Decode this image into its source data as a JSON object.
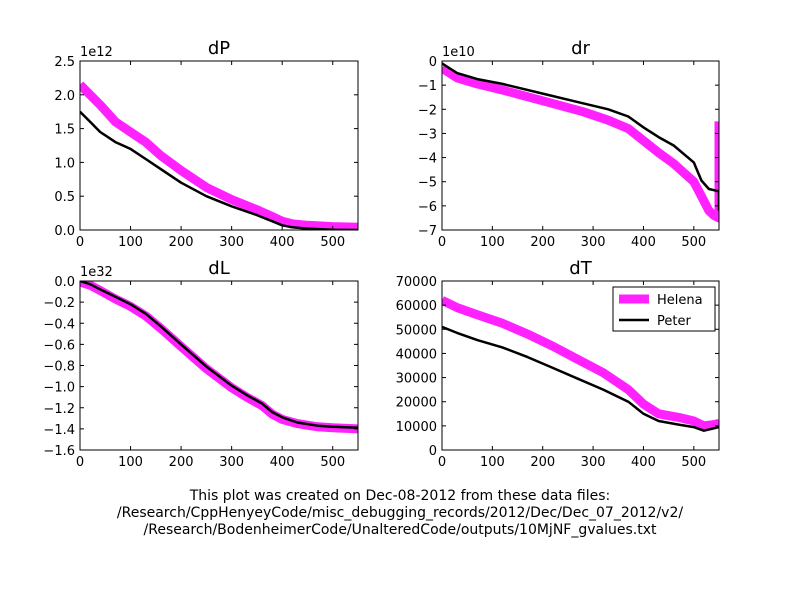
{
  "charts": {
    "series_names": [
      "Helena",
      "Peter"
    ],
    "series_colors": {
      "Helena": "#ff22ff",
      "Peter": "#000000"
    }
  },
  "chart_data": [
    {
      "type": "line",
      "title": "dP",
      "xlabel": "",
      "ylabel": "",
      "y_multiplier_label": "1e12",
      "xlim": [
        0,
        550
      ],
      "ylim": [
        0.0,
        2.5
      ],
      "x_ticks": [
        "0",
        "100",
        "200",
        "300",
        "400",
        "500"
      ],
      "y_ticks": [
        "0.0",
        "0.5",
        "1.0",
        "1.5",
        "2.0",
        "2.5"
      ],
      "x_tick_values": [
        0,
        100,
        200,
        300,
        400,
        500
      ],
      "y_tick_values": [
        0.0,
        0.5,
        1.0,
        1.5,
        2.0,
        2.5
      ],
      "grid": false,
      "series": [
        {
          "name": "Helena",
          "x": [
            0,
            20,
            40,
            70,
            100,
            130,
            160,
            200,
            250,
            300,
            350,
            380,
            400,
            420,
            450,
            500,
            550
          ],
          "values": [
            2.15,
            2.0,
            1.85,
            1.6,
            1.45,
            1.3,
            1.1,
            0.88,
            0.63,
            0.45,
            0.3,
            0.2,
            0.13,
            0.09,
            0.07,
            0.05,
            0.04
          ]
        },
        {
          "name": "Peter",
          "x": [
            0,
            20,
            40,
            70,
            100,
            130,
            160,
            200,
            250,
            300,
            350,
            380,
            400,
            420,
            450,
            500,
            550
          ],
          "values": [
            1.75,
            1.6,
            1.45,
            1.3,
            1.2,
            1.05,
            0.9,
            0.7,
            0.5,
            0.35,
            0.22,
            0.13,
            0.07,
            0.04,
            0.02,
            0.005,
            0.0
          ]
        }
      ]
    },
    {
      "type": "line",
      "title": "dr",
      "xlabel": "",
      "ylabel": "",
      "y_multiplier_label": "1e10",
      "xlim": [
        0,
        550
      ],
      "ylim": [
        -7,
        0
      ],
      "x_ticks": [
        "0",
        "100",
        "200",
        "300",
        "400",
        "500"
      ],
      "y_ticks": [
        "0",
        "−1",
        "−2",
        "−3",
        "−4",
        "−5",
        "−6",
        "−7"
      ],
      "x_tick_values": [
        0,
        100,
        200,
        300,
        400,
        500
      ],
      "y_tick_values": [
        0,
        -1,
        -2,
        -3,
        -4,
        -5,
        -6,
        -7
      ],
      "grid": false,
      "series": [
        {
          "name": "Helena",
          "x": [
            0,
            30,
            70,
            120,
            200,
            280,
            330,
            370,
            400,
            430,
            460,
            500,
            515,
            530,
            540,
            550,
            550
          ],
          "values": [
            -0.3,
            -0.7,
            -0.95,
            -1.2,
            -1.65,
            -2.1,
            -2.45,
            -2.8,
            -3.3,
            -3.8,
            -4.25,
            -5.0,
            -5.6,
            -6.2,
            -6.4,
            -6.5,
            -2.5
          ]
        },
        {
          "name": "Peter",
          "x": [
            0,
            30,
            70,
            120,
            200,
            280,
            330,
            370,
            400,
            430,
            460,
            500,
            515,
            530,
            540,
            550,
            550
          ],
          "values": [
            -0.1,
            -0.5,
            -0.75,
            -0.95,
            -1.35,
            -1.75,
            -2.0,
            -2.3,
            -2.75,
            -3.15,
            -3.5,
            -4.2,
            -4.95,
            -5.3,
            -5.35,
            -5.4,
            -6.2
          ]
        }
      ]
    },
    {
      "type": "line",
      "title": "dL",
      "xlabel": "",
      "ylabel": "",
      "y_multiplier_label": "1e32",
      "xlim": [
        0,
        550
      ],
      "ylim": [
        -1.6,
        0.0
      ],
      "x_ticks": [
        "0",
        "100",
        "200",
        "300",
        "400",
        "500"
      ],
      "y_ticks": [
        "0.0",
        "−0.2",
        "−0.4",
        "−0.6",
        "−0.8",
        "−1.0",
        "−1.2",
        "−1.4",
        "−1.6"
      ],
      "x_tick_values": [
        0,
        100,
        200,
        300,
        400,
        500
      ],
      "y_tick_values": [
        0.0,
        -0.2,
        -0.4,
        -0.6,
        -0.8,
        -1.0,
        -1.2,
        -1.4,
        -1.6
      ],
      "grid": false,
      "series": [
        {
          "name": "Helena",
          "x": [
            0,
            20,
            40,
            70,
            100,
            130,
            160,
            200,
            250,
            300,
            330,
            360,
            380,
            400,
            430,
            470,
            500,
            550
          ],
          "values": [
            -0.01,
            -0.04,
            -0.09,
            -0.17,
            -0.24,
            -0.33,
            -0.45,
            -0.62,
            -0.83,
            -1.01,
            -1.1,
            -1.18,
            -1.26,
            -1.31,
            -1.35,
            -1.38,
            -1.39,
            -1.4
          ]
        },
        {
          "name": "Peter",
          "x": [
            0,
            20,
            40,
            70,
            100,
            130,
            160,
            200,
            250,
            300,
            330,
            360,
            380,
            400,
            430,
            470,
            500,
            550
          ],
          "values": [
            0.0,
            -0.03,
            -0.08,
            -0.15,
            -0.22,
            -0.31,
            -0.43,
            -0.6,
            -0.81,
            -0.99,
            -1.08,
            -1.16,
            -1.24,
            -1.29,
            -1.34,
            -1.37,
            -1.38,
            -1.39
          ]
        }
      ]
    },
    {
      "type": "line",
      "title": "dT",
      "xlabel": "",
      "ylabel": "",
      "xlim": [
        0,
        550
      ],
      "ylim": [
        0,
        70000
      ],
      "x_ticks": [
        "0",
        "100",
        "200",
        "300",
        "400",
        "500"
      ],
      "y_ticks": [
        "0",
        "10000",
        "20000",
        "30000",
        "40000",
        "50000",
        "60000",
        "70000"
      ],
      "x_tick_values": [
        0,
        100,
        200,
        300,
        400,
        500
      ],
      "y_tick_values": [
        0,
        10000,
        20000,
        30000,
        40000,
        50000,
        60000,
        70000
      ],
      "grid": false,
      "legend": {
        "position": "top-right",
        "entries": [
          "Helena",
          "Peter"
        ]
      },
      "series": [
        {
          "name": "Helena",
          "x": [
            0,
            30,
            70,
            120,
            170,
            220,
            270,
            320,
            370,
            400,
            430,
            470,
            500,
            520,
            540,
            550,
            550
          ],
          "values": [
            62000,
            59000,
            56000,
            52500,
            48000,
            43000,
            37500,
            32000,
            25000,
            19000,
            15000,
            13500,
            12000,
            10000,
            10500,
            11000,
            12500
          ]
        },
        {
          "name": "Peter",
          "x": [
            0,
            30,
            70,
            120,
            170,
            220,
            270,
            320,
            370,
            400,
            430,
            470,
            500,
            520,
            540,
            550,
            550
          ],
          "values": [
            51000,
            48500,
            45500,
            42500,
            38500,
            34000,
            29500,
            25000,
            20000,
            15000,
            12000,
            10500,
            9500,
            8000,
            9000,
            9500,
            9000
          ]
        }
      ]
    }
  ],
  "caption": {
    "line1": "This plot was created on Dec-08-2012 from these data files:",
    "line2": "/Research/CppHenyeyCode/misc_debugging_records/2012/Dec/Dec_07_2012/v2/",
    "line3": "/Research/BodenheimerCode/UnalteredCode/outputs/10MjNF_gvalues.txt"
  }
}
